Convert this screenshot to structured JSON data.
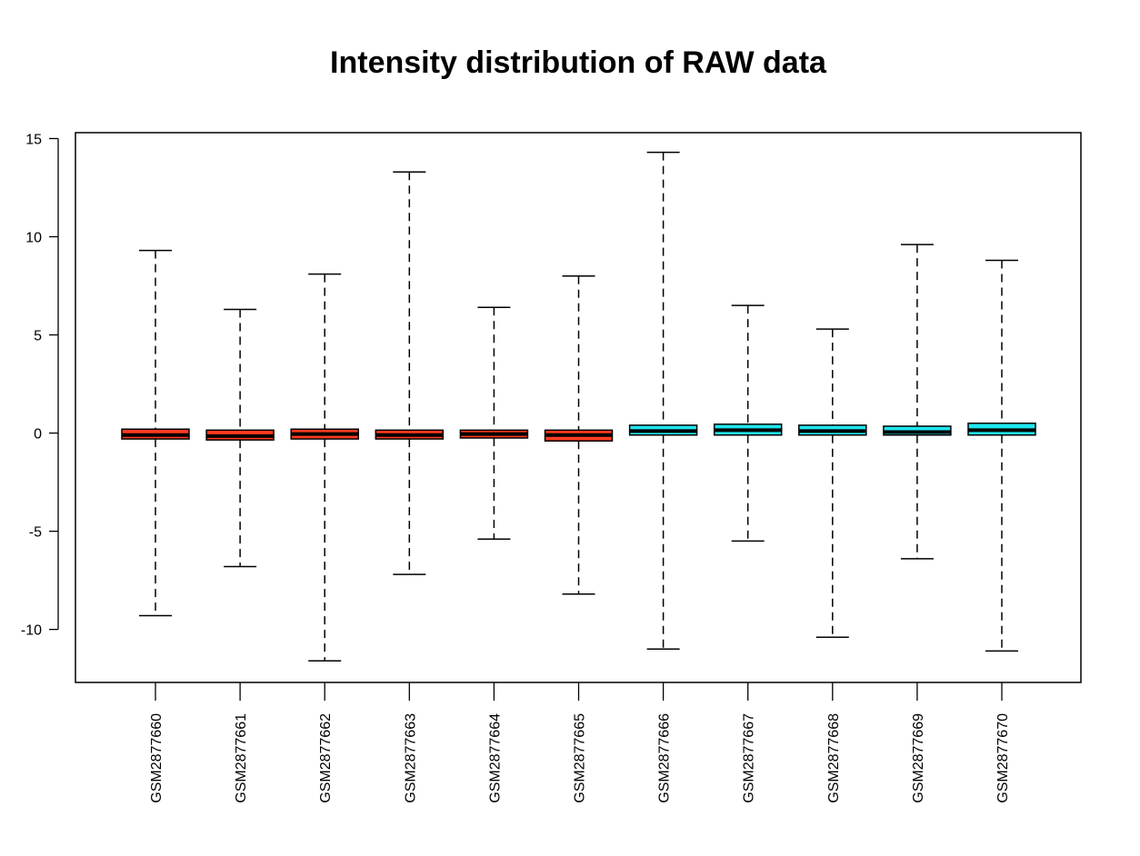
{
  "chart_data": {
    "type": "boxplot",
    "title": "Intensity distribution of RAW data",
    "xlabel": "",
    "ylabel": "",
    "ylim": [
      -12.7,
      15.3
    ],
    "yticks": [
      15,
      10,
      5,
      0,
      -5,
      -10
    ],
    "grid": false,
    "legend": "none",
    "categories": [
      "GSM2877660",
      "GSM2877661",
      "GSM2877662",
      "GSM2877663",
      "GSM2877664",
      "GSM2877665",
      "GSM2877666",
      "GSM2877667",
      "GSM2877668",
      "GSM2877669",
      "GSM2877670"
    ],
    "box_colors": [
      "#ff3b1f",
      "#ff3b1f",
      "#ff3b1f",
      "#ff3b1f",
      "#ff3b1f",
      "#ff3b1f",
      "#1ee6ee",
      "#1ee6ee",
      "#1ee6ee",
      "#1ee6ee",
      "#1ee6ee"
    ],
    "boxes": [
      {
        "min": -9.3,
        "q1": -0.3,
        "median": -0.1,
        "q3": 0.2,
        "max": 9.3
      },
      {
        "min": -6.8,
        "q1": -0.35,
        "median": -0.15,
        "q3": 0.15,
        "max": 6.3
      },
      {
        "min": -11.6,
        "q1": -0.3,
        "median": -0.05,
        "q3": 0.2,
        "max": 8.1
      },
      {
        "min": -7.2,
        "q1": -0.3,
        "median": -0.1,
        "q3": 0.15,
        "max": 13.3
      },
      {
        "min": -5.4,
        "q1": -0.25,
        "median": -0.05,
        "q3": 0.15,
        "max": 6.4
      },
      {
        "min": -8.2,
        "q1": -0.4,
        "median": -0.1,
        "q3": 0.15,
        "max": 8.0
      },
      {
        "min": -11.0,
        "q1": -0.1,
        "median": 0.1,
        "q3": 0.4,
        "max": 14.3
      },
      {
        "min": -5.5,
        "q1": -0.1,
        "median": 0.15,
        "q3": 0.45,
        "max": 6.5
      },
      {
        "min": -10.4,
        "q1": -0.1,
        "median": 0.1,
        "q3": 0.4,
        "max": 5.3
      },
      {
        "min": -6.4,
        "q1": -0.1,
        "median": 0.05,
        "q3": 0.35,
        "max": 9.6
      },
      {
        "min": -11.1,
        "q1": -0.1,
        "median": 0.15,
        "q3": 0.5,
        "max": 8.8
      }
    ]
  }
}
